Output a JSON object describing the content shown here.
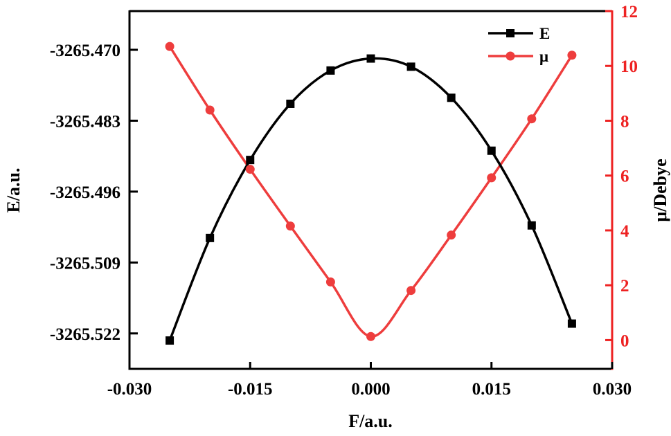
{
  "chart_data": {
    "type": "line",
    "title": "",
    "xlabel": "F/a.u.",
    "ylabel": "E/a.u.",
    "y2label": "μ/Debye",
    "xlim": [
      -0.03,
      0.03
    ],
    "ylim": [
      -3265.5285,
      -3265.4629
    ],
    "y2lim": [
      -1.05,
      12
    ],
    "x_ticks": [
      -0.03,
      -0.015,
      0.0,
      0.015,
      0.03
    ],
    "x_tick_labels": [
      "-0.030",
      "-0.015",
      "0.000",
      "0.015",
      "0.030"
    ],
    "y_ticks": [
      -3265.47,
      -3265.483,
      -3265.496,
      -3265.509,
      -3265.522
    ],
    "y_tick_labels": [
      "-3265.470",
      "-3265.483",
      "-3265.496",
      "-3265.509",
      "-3265.522"
    ],
    "y2_ticks": [
      0,
      2,
      4,
      6,
      8,
      10,
      12
    ],
    "y2_tick_labels": [
      "0",
      "2",
      "4",
      "6",
      "8",
      "10",
      "12"
    ],
    "grid": false,
    "legend_position": "upper right (inside)",
    "x": [
      -0.025,
      -0.02,
      -0.015,
      -0.01,
      -0.005,
      0.0,
      0.005,
      0.01,
      0.015,
      0.02,
      0.025
    ],
    "series": [
      {
        "name": "E",
        "axis": "left",
        "color": "#000000",
        "marker": "square",
        "smooth": true,
        "values": [
          -3265.5233,
          -3265.5045,
          -3265.4902,
          -3265.4799,
          -3265.4738,
          -3265.4716,
          -3265.4731,
          -3265.4788,
          -3265.4885,
          -3265.5022,
          -3265.5202
        ]
      },
      {
        "name": "μ",
        "axis": "right",
        "color": "#ee3d3d",
        "marker": "circle",
        "smooth": true,
        "values": [
          10.71,
          8.39,
          6.23,
          4.16,
          2.12,
          0.13,
          1.81,
          3.83,
          5.92,
          8.07,
          10.39
        ]
      }
    ]
  },
  "colors": {
    "left_axis": "#000000",
    "right_axis": "#ee2222",
    "mu_series": "#ee3d3d",
    "e_series": "#000000"
  }
}
